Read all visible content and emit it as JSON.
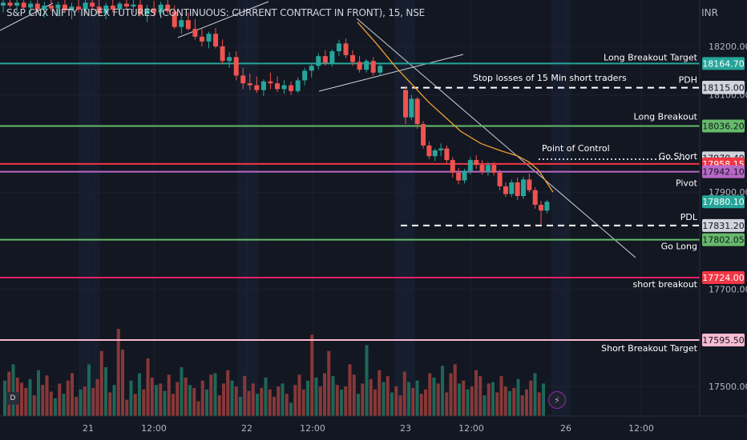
{
  "header": {
    "title": "S&P CNX NIFTY INDEX FUTURES (CONTINUOUS: CURRENT CONTRACT IN FRONT), 15, NSE",
    "currency": "INR"
  },
  "badges": {
    "interval": "D",
    "alert_icon": "lightning-bolt-icon"
  },
  "chart_data": {
    "type": "candlestick",
    "y_axis": {
      "ticks": [
        18200.0,
        18100.0,
        17900.0,
        17700.0,
        17500.0
      ],
      "tick_labels": [
        "18200.00",
        "18100.00",
        "17900.00",
        "17700.00",
        "17500.00"
      ],
      "ylim": [
        17455,
        18290
      ]
    },
    "x_axis": {
      "labels": [
        "21",
        "12:00",
        "22",
        "12:00",
        "23",
        "12:00",
        "26",
        "12:00"
      ]
    },
    "grid": true,
    "colors": {
      "up": "#26a69a",
      "down": "#ef5350",
      "ma": "#f0a030",
      "trend": "#d1d4dc"
    },
    "levels": [
      {
        "label": "Long Breakout Target",
        "value": "18164.70",
        "price": 18164.7,
        "color": "#26a69a",
        "style": "solid"
      },
      {
        "label": "",
        "value": "18116.10",
        "price": 18116.1,
        "color": "#d1d4dc",
        "style": "none"
      },
      {
        "label": "PDH",
        "value": "18115.00",
        "price": 18115.0,
        "color": "#ffffff",
        "style": "dashed"
      },
      {
        "label": "Long Breakout",
        "value": "18036.20",
        "price": 18036.2,
        "color": "#66bb6a",
        "style": "solid"
      },
      {
        "label": "",
        "value": "17970.40",
        "price": 17970.4,
        "color": "#d1d4dc",
        "style": "none"
      },
      {
        "label": "Go Short",
        "value": "17958.15",
        "price": 17958.15,
        "color": "#f23645",
        "style": "solid"
      },
      {
        "label": "Pivot",
        "value": "17942.10",
        "price": 17942.1,
        "color": "#ba68c8",
        "style": "solid"
      },
      {
        "label": "",
        "value": "17880.10",
        "price": 17880.1,
        "color": "#26a69a",
        "style": "none"
      },
      {
        "label": "PDL",
        "value": "17831.20",
        "price": 17831.2,
        "color": "#ffffff",
        "style": "dashed"
      },
      {
        "label": "Go Long",
        "value": "17802.05",
        "price": 17802.05,
        "color": "#66bb6a",
        "style": "solid"
      },
      {
        "label": "short breakout",
        "value": "17724.00",
        "price": 17724.0,
        "color": "#e91e63",
        "style": "solid"
      },
      {
        "label": "Short  Breakout Target",
        "value": "17595.50",
        "price": 17595.5,
        "color": "#f8bbd0",
        "style": "solid"
      }
    ],
    "annotations": [
      {
        "text": "Stop losses of 15 Min short traders"
      },
      {
        "text": "Point of Control"
      }
    ],
    "candles": [
      [
        18284,
        18296,
        18270,
        18290
      ],
      [
        18290,
        18300,
        18280,
        18284
      ],
      [
        18284,
        18298,
        18270,
        18290
      ],
      [
        18290,
        18296,
        18276,
        18280
      ],
      [
        18280,
        18294,
        18266,
        18288
      ],
      [
        18288,
        18296,
        18270,
        18276
      ],
      [
        18276,
        18292,
        18260,
        18284
      ],
      [
        18284,
        18298,
        18272,
        18278
      ],
      [
        18278,
        18292,
        18262,
        18286
      ],
      [
        18286,
        18296,
        18270,
        18274
      ],
      [
        18274,
        18290,
        18256,
        18282
      ],
      [
        18282,
        18296,
        18270,
        18276
      ],
      [
        18276,
        18296,
        18266,
        18290
      ],
      [
        18290,
        18300,
        18276,
        18282
      ],
      [
        18282,
        18296,
        18262,
        18268
      ],
      [
        18268,
        18290,
        18256,
        18284
      ],
      [
        18284,
        18298,
        18270,
        18276
      ],
      [
        18276,
        18292,
        18264,
        18288
      ],
      [
        18288,
        18300,
        18276,
        18282
      ],
      [
        18282,
        18296,
        18270,
        18286
      ],
      [
        18286,
        18298,
        18262,
        18266
      ],
      [
        18266,
        18286,
        18250,
        18278
      ],
      [
        18278,
        18294,
        18262,
        18270
      ],
      [
        18270,
        18292,
        18258,
        18286
      ],
      [
        18286,
        18298,
        18268,
        18272
      ],
      [
        18272,
        18284,
        18236,
        18240
      ],
      [
        18240,
        18262,
        18226,
        18254
      ],
      [
        18254,
        18270,
        18232,
        18236
      ],
      [
        18236,
        18256,
        18214,
        18220
      ],
      [
        18220,
        18236,
        18200,
        18210
      ],
      [
        18210,
        18230,
        18196,
        18226
      ],
      [
        18226,
        18238,
        18196,
        18200
      ],
      [
        18200,
        18214,
        18164,
        18170
      ],
      [
        18170,
        18188,
        18156,
        18178
      ],
      [
        18178,
        18190,
        18130,
        18140
      ],
      [
        18140,
        18156,
        18112,
        18124
      ],
      [
        18124,
        18144,
        18110,
        18120
      ],
      [
        18120,
        18138,
        18104,
        18110
      ],
      [
        18110,
        18132,
        18098,
        18128
      ],
      [
        18128,
        18146,
        18112,
        18124
      ],
      [
        18124,
        18138,
        18106,
        18112
      ],
      [
        18112,
        18130,
        18102,
        18120
      ],
      [
        18120,
        18128,
        18100,
        18108
      ],
      [
        18108,
        18136,
        18104,
        18130
      ],
      [
        18130,
        18156,
        18120,
        18150
      ],
      [
        18150,
        18166,
        18136,
        18160
      ],
      [
        18160,
        18186,
        18152,
        18180
      ],
      [
        18180,
        18192,
        18160,
        18166
      ],
      [
        18166,
        18194,
        18158,
        18190
      ],
      [
        18190,
        18214,
        18180,
        18206
      ],
      [
        18206,
        18216,
        18176,
        18182
      ],
      [
        18182,
        18192,
        18160,
        18168
      ],
      [
        18168,
        18180,
        18146,
        18152
      ],
      [
        18152,
        18174,
        18146,
        18170
      ],
      [
        18170,
        18178,
        18140,
        18146
      ],
      [
        18146,
        18164,
        18140,
        18160
      ],
      [
        18110,
        18118,
        18040,
        18054
      ],
      [
        18054,
        18100,
        18048,
        18092
      ],
      [
        18092,
        18096,
        18030,
        18040
      ],
      [
        18040,
        18046,
        17990,
        17996
      ],
      [
        17996,
        18004,
        17968,
        17974
      ],
      [
        17974,
        17990,
        17964,
        17986
      ],
      [
        17986,
        18000,
        17974,
        17990
      ],
      [
        17990,
        17996,
        17960,
        17966
      ],
      [
        17966,
        17972,
        17930,
        17940
      ],
      [
        17940,
        17950,
        17916,
        17924
      ],
      [
        17924,
        17948,
        17918,
        17944
      ],
      [
        17944,
        17972,
        17936,
        17966
      ],
      [
        17966,
        17976,
        17948,
        17956
      ],
      [
        17956,
        17966,
        17936,
        17942
      ],
      [
        17942,
        17962,
        17934,
        17956
      ],
      [
        17956,
        17962,
        17934,
        17940
      ],
      [
        17940,
        17946,
        17904,
        17912
      ],
      [
        17912,
        17920,
        17890,
        17896
      ],
      [
        17896,
        17926,
        17890,
        17920
      ],
      [
        17920,
        17930,
        17884,
        17892
      ],
      [
        17892,
        17932,
        17886,
        17926
      ],
      [
        17926,
        17938,
        17900,
        17904
      ],
      [
        17904,
        17910,
        17866,
        17874
      ],
      [
        17874,
        17882,
        17832,
        17862
      ],
      [
        17862,
        17884,
        17856,
        17880
      ]
    ],
    "volume": [
      48,
      60,
      70,
      52,
      45,
      38,
      50,
      28,
      62,
      42,
      55,
      33,
      24,
      44,
      30,
      48,
      58,
      26,
      36,
      40,
      70,
      38,
      50,
      88,
      66,
      32,
      42,
      118,
      90,
      22,
      48,
      30,
      58,
      36,
      78,
      52,
      42,
      44,
      34,
      56,
      30,
      46,
      66,
      52,
      42,
      38,
      20,
      48,
      36,
      56,
      58,
      28,
      44,
      62,
      48,
      40,
      26,
      54,
      34,
      44,
      30,
      38,
      52,
      36,
      26,
      40,
      44,
      30,
      18,
      42,
      56,
      36,
      48,
      110,
      52,
      40,
      58,
      88,
      54,
      42,
      36,
      40,
      70,
      56,
      30,
      44,
      96,
      50,
      36,
      62,
      46,
      54,
      32,
      40,
      28,
      60,
      46,
      38,
      48,
      30,
      36,
      58,
      52,
      44,
      68,
      32,
      58,
      70,
      44,
      48,
      36,
      40,
      62,
      54,
      28,
      44,
      46,
      32,
      54,
      40,
      34,
      38,
      50,
      28,
      36,
      48,
      58,
      32,
      44
    ],
    "ma": [
      [
        446,
        18250
      ],
      [
        470,
        18205
      ],
      [
        495,
        18155
      ],
      [
        515,
        18120
      ],
      [
        535,
        18085
      ],
      [
        555,
        18055
      ],
      [
        575,
        18025
      ],
      [
        600,
        18000
      ],
      [
        625,
        17985
      ],
      [
        645,
        17975
      ],
      [
        660,
        17962
      ],
      [
        672,
        17945
      ],
      [
        682,
        17920
      ],
      [
        690,
        17900
      ]
    ]
  }
}
